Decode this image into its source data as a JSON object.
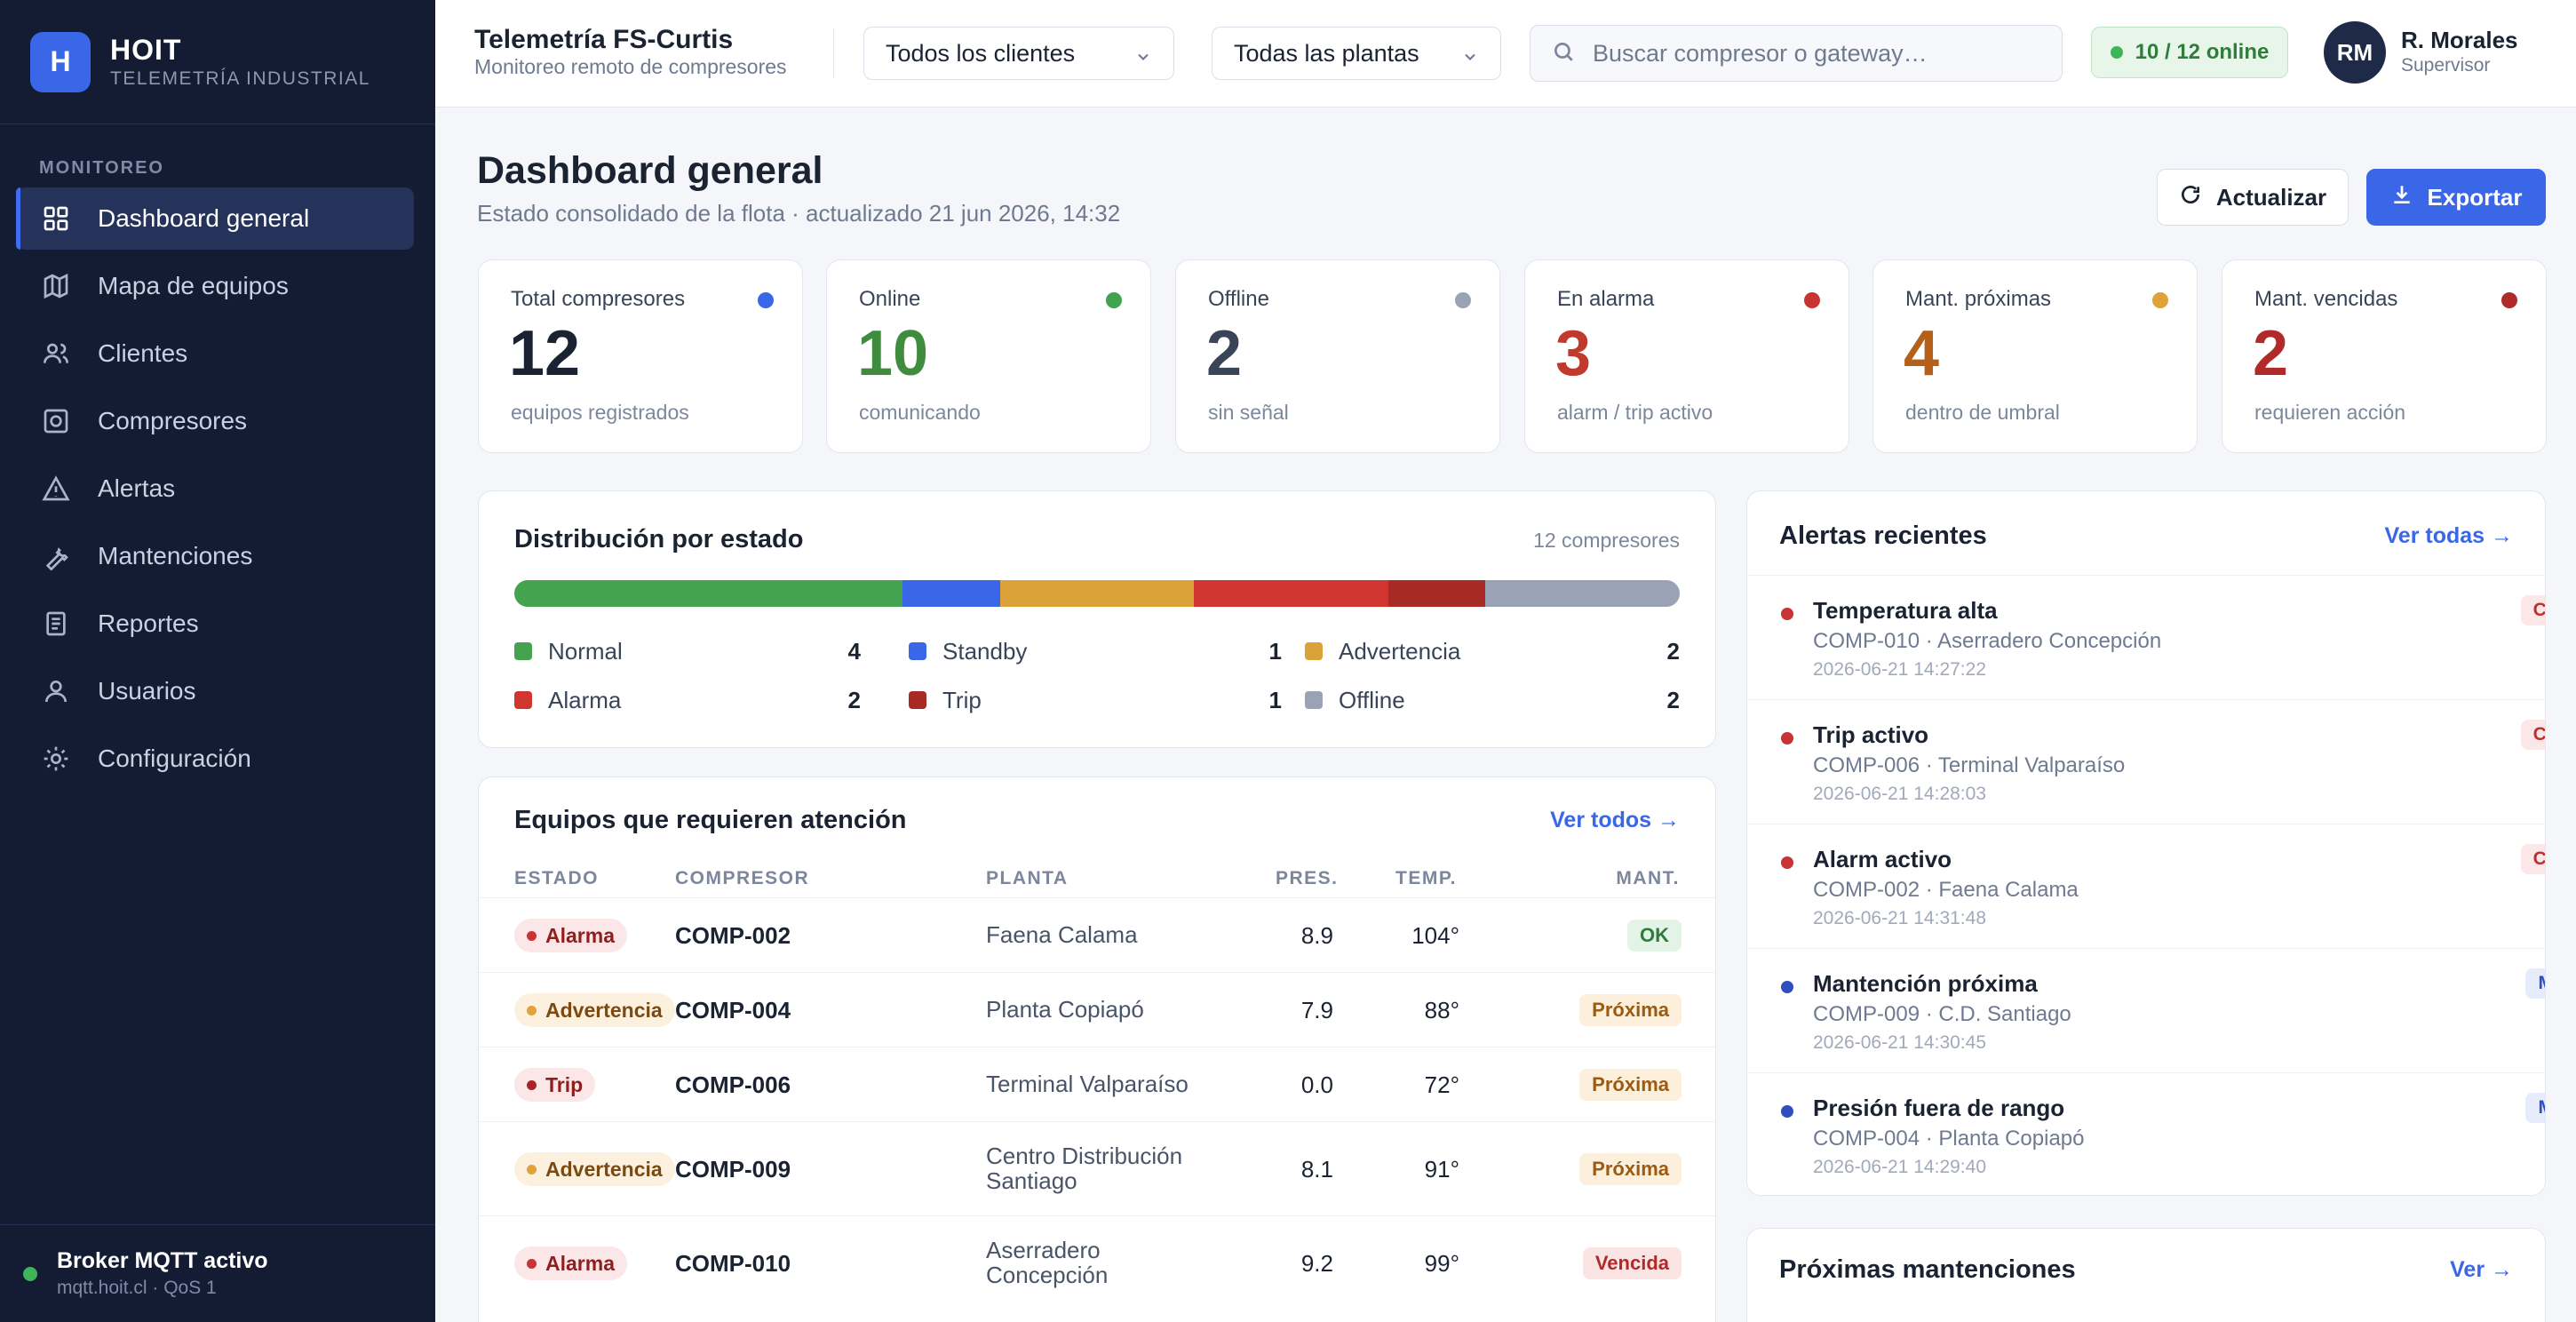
{
  "brand": {
    "logo": "H",
    "name": "HOIT",
    "subtitle": "TELEMETRÍA INDUSTRIAL"
  },
  "sidebar": {
    "section": "MONITOREO",
    "items": [
      {
        "label": "Dashboard general",
        "icon": "grid-icon",
        "active": true
      },
      {
        "label": "Mapa de equipos",
        "icon": "map-icon"
      },
      {
        "label": "Clientes",
        "icon": "users-icon"
      },
      {
        "label": "Compresores",
        "icon": "compressor-icon"
      },
      {
        "label": "Alertas",
        "icon": "warning-icon"
      },
      {
        "label": "Mantenciones",
        "icon": "wrench-icon"
      },
      {
        "label": "Reportes",
        "icon": "document-icon"
      },
      {
        "label": "Usuarios",
        "icon": "user-icon"
      },
      {
        "label": "Configuración",
        "icon": "gear-icon"
      }
    ],
    "broker": {
      "title": "Broker MQTT activo",
      "subtitle": "mqtt.hoit.cl · QoS 1",
      "color": "#3fb55a"
    }
  },
  "topbar": {
    "title": "Telemetría FS-Curtis",
    "subtitle": "Monitoreo remoto de compresores",
    "client_select": "Todos los clientes",
    "plant_select": "Todas las plantas",
    "search_placeholder": "Buscar compresor o gateway…",
    "online": "10 / 12 online",
    "user": {
      "initials": "RM",
      "name": "R. Morales",
      "role": "Supervisor"
    }
  },
  "page": {
    "title": "Dashboard general",
    "subtitle": "Estado consolidado de la flota · actualizado 21 jun 2026, 14:32",
    "refresh_label": "Actualizar",
    "export_label": "Exportar"
  },
  "kpis": [
    {
      "label": "Total compresores",
      "value": "12",
      "sub": "equipos registrados",
      "color": "#1b2333",
      "dot": "#3a66e8"
    },
    {
      "label": "Online",
      "value": "10",
      "sub": "comunicando",
      "color": "#3f8c3f",
      "dot": "#3fa34f"
    },
    {
      "label": "Offline",
      "value": "2",
      "sub": "sin señal",
      "color": "#3a4458",
      "dot": "#9aa3b5"
    },
    {
      "label": "En alarma",
      "value": "3",
      "sub": "alarm / trip activo",
      "color": "#c0392b",
      "dot": "#c93333"
    },
    {
      "label": "Mant. próximas",
      "value": "4",
      "sub": "dentro de umbral",
      "color": "#b5601a",
      "dot": "#e0a23a"
    },
    {
      "label": "Mant. vencidas",
      "value": "2",
      "sub": "requieren acción",
      "color": "#b02a2a",
      "dot": "#b02a2a"
    }
  ],
  "distribution": {
    "title": "Distribución por estado",
    "count": "12 compresores",
    "total": 12,
    "states": [
      {
        "name": "Normal",
        "value": 4,
        "color": "#43a34f"
      },
      {
        "name": "Standby",
        "value": 1,
        "color": "#3a66e8"
      },
      {
        "name": "Advertencia",
        "value": 2,
        "color": "#dba23a"
      },
      {
        "name": "Alarma",
        "value": 2,
        "color": "#d0352f"
      },
      {
        "name": "Trip",
        "value": 1,
        "color": "#a82a24"
      },
      {
        "name": "Offline",
        "value": 2,
        "color": "#9aa3b5"
      }
    ]
  },
  "attention": {
    "title": "Equipos que requieren atención",
    "link": "Ver todos →",
    "headers": {
      "estado": "ESTADO",
      "compresor": "COMPRESOR",
      "planta": "PLANTA",
      "pres": "PRES.",
      "temp": "TEMP.",
      "mant": "MANT."
    },
    "rows": [
      {
        "estado": "Alarma",
        "kind": "alarm",
        "compresor": "COMP-002",
        "planta": "Faena Calama",
        "pres": "8.9",
        "temp": "104°",
        "mant": "OK",
        "mkind": "ok"
      },
      {
        "estado": "Advertencia",
        "kind": "warn",
        "compresor": "COMP-004",
        "planta": "Planta Copiapó",
        "pres": "7.9",
        "temp": "88°",
        "mant": "Próxima",
        "mkind": "prox"
      },
      {
        "estado": "Trip",
        "kind": "trip",
        "compresor": "COMP-006",
        "planta": "Terminal Valparaíso",
        "pres": "0.0",
        "temp": "72°",
        "mant": "Próxima",
        "mkind": "prox"
      },
      {
        "estado": "Advertencia",
        "kind": "warn",
        "compresor": "COMP-009",
        "planta": "Centro Distribución Santiago",
        "pres": "8.1",
        "temp": "91°",
        "mant": "Próxima",
        "mkind": "prox"
      },
      {
        "estado": "Alarma",
        "kind": "alarm",
        "compresor": "COMP-010",
        "planta": "Aserradero Concepción",
        "pres": "9.2",
        "temp": "99°",
        "mant": "Vencida",
        "mkind": "venc"
      }
    ]
  },
  "alerts": {
    "title": "Alertas recientes",
    "link": "Ver todas →",
    "items": [
      {
        "title": "Temperatura alta",
        "desc": "COMP-010 · Aserradero Concepción",
        "time": "2026-06-21 14:27:22",
        "sev": "Crítica",
        "skind": "crit",
        "dot": "#c93333"
      },
      {
        "title": "Trip activo",
        "desc": "COMP-006 · Terminal Valparaíso",
        "time": "2026-06-21 14:28:03",
        "sev": "Crítica",
        "skind": "crit",
        "dot": "#c93333"
      },
      {
        "title": "Alarm activo",
        "desc": "COMP-002 · Faena Calama",
        "time": "2026-06-21 14:31:48",
        "sev": "Crítica",
        "skind": "crit",
        "dot": "#c93333"
      },
      {
        "title": "Mantención próxima",
        "desc": "COMP-009 · C.D. Santiago",
        "time": "2026-06-21 14:30:45",
        "sev": "Media",
        "skind": "med",
        "dot": "#2f4fbf"
      },
      {
        "title": "Presión fuera de rango",
        "desc": "COMP-004 · Planta Copiapó",
        "time": "2026-06-21 14:29:40",
        "sev": "Media",
        "skind": "med",
        "dot": "#2f4fbf"
      }
    ]
  },
  "maintenance": {
    "title": "Próximas mantenciones",
    "link": "Ver →"
  }
}
